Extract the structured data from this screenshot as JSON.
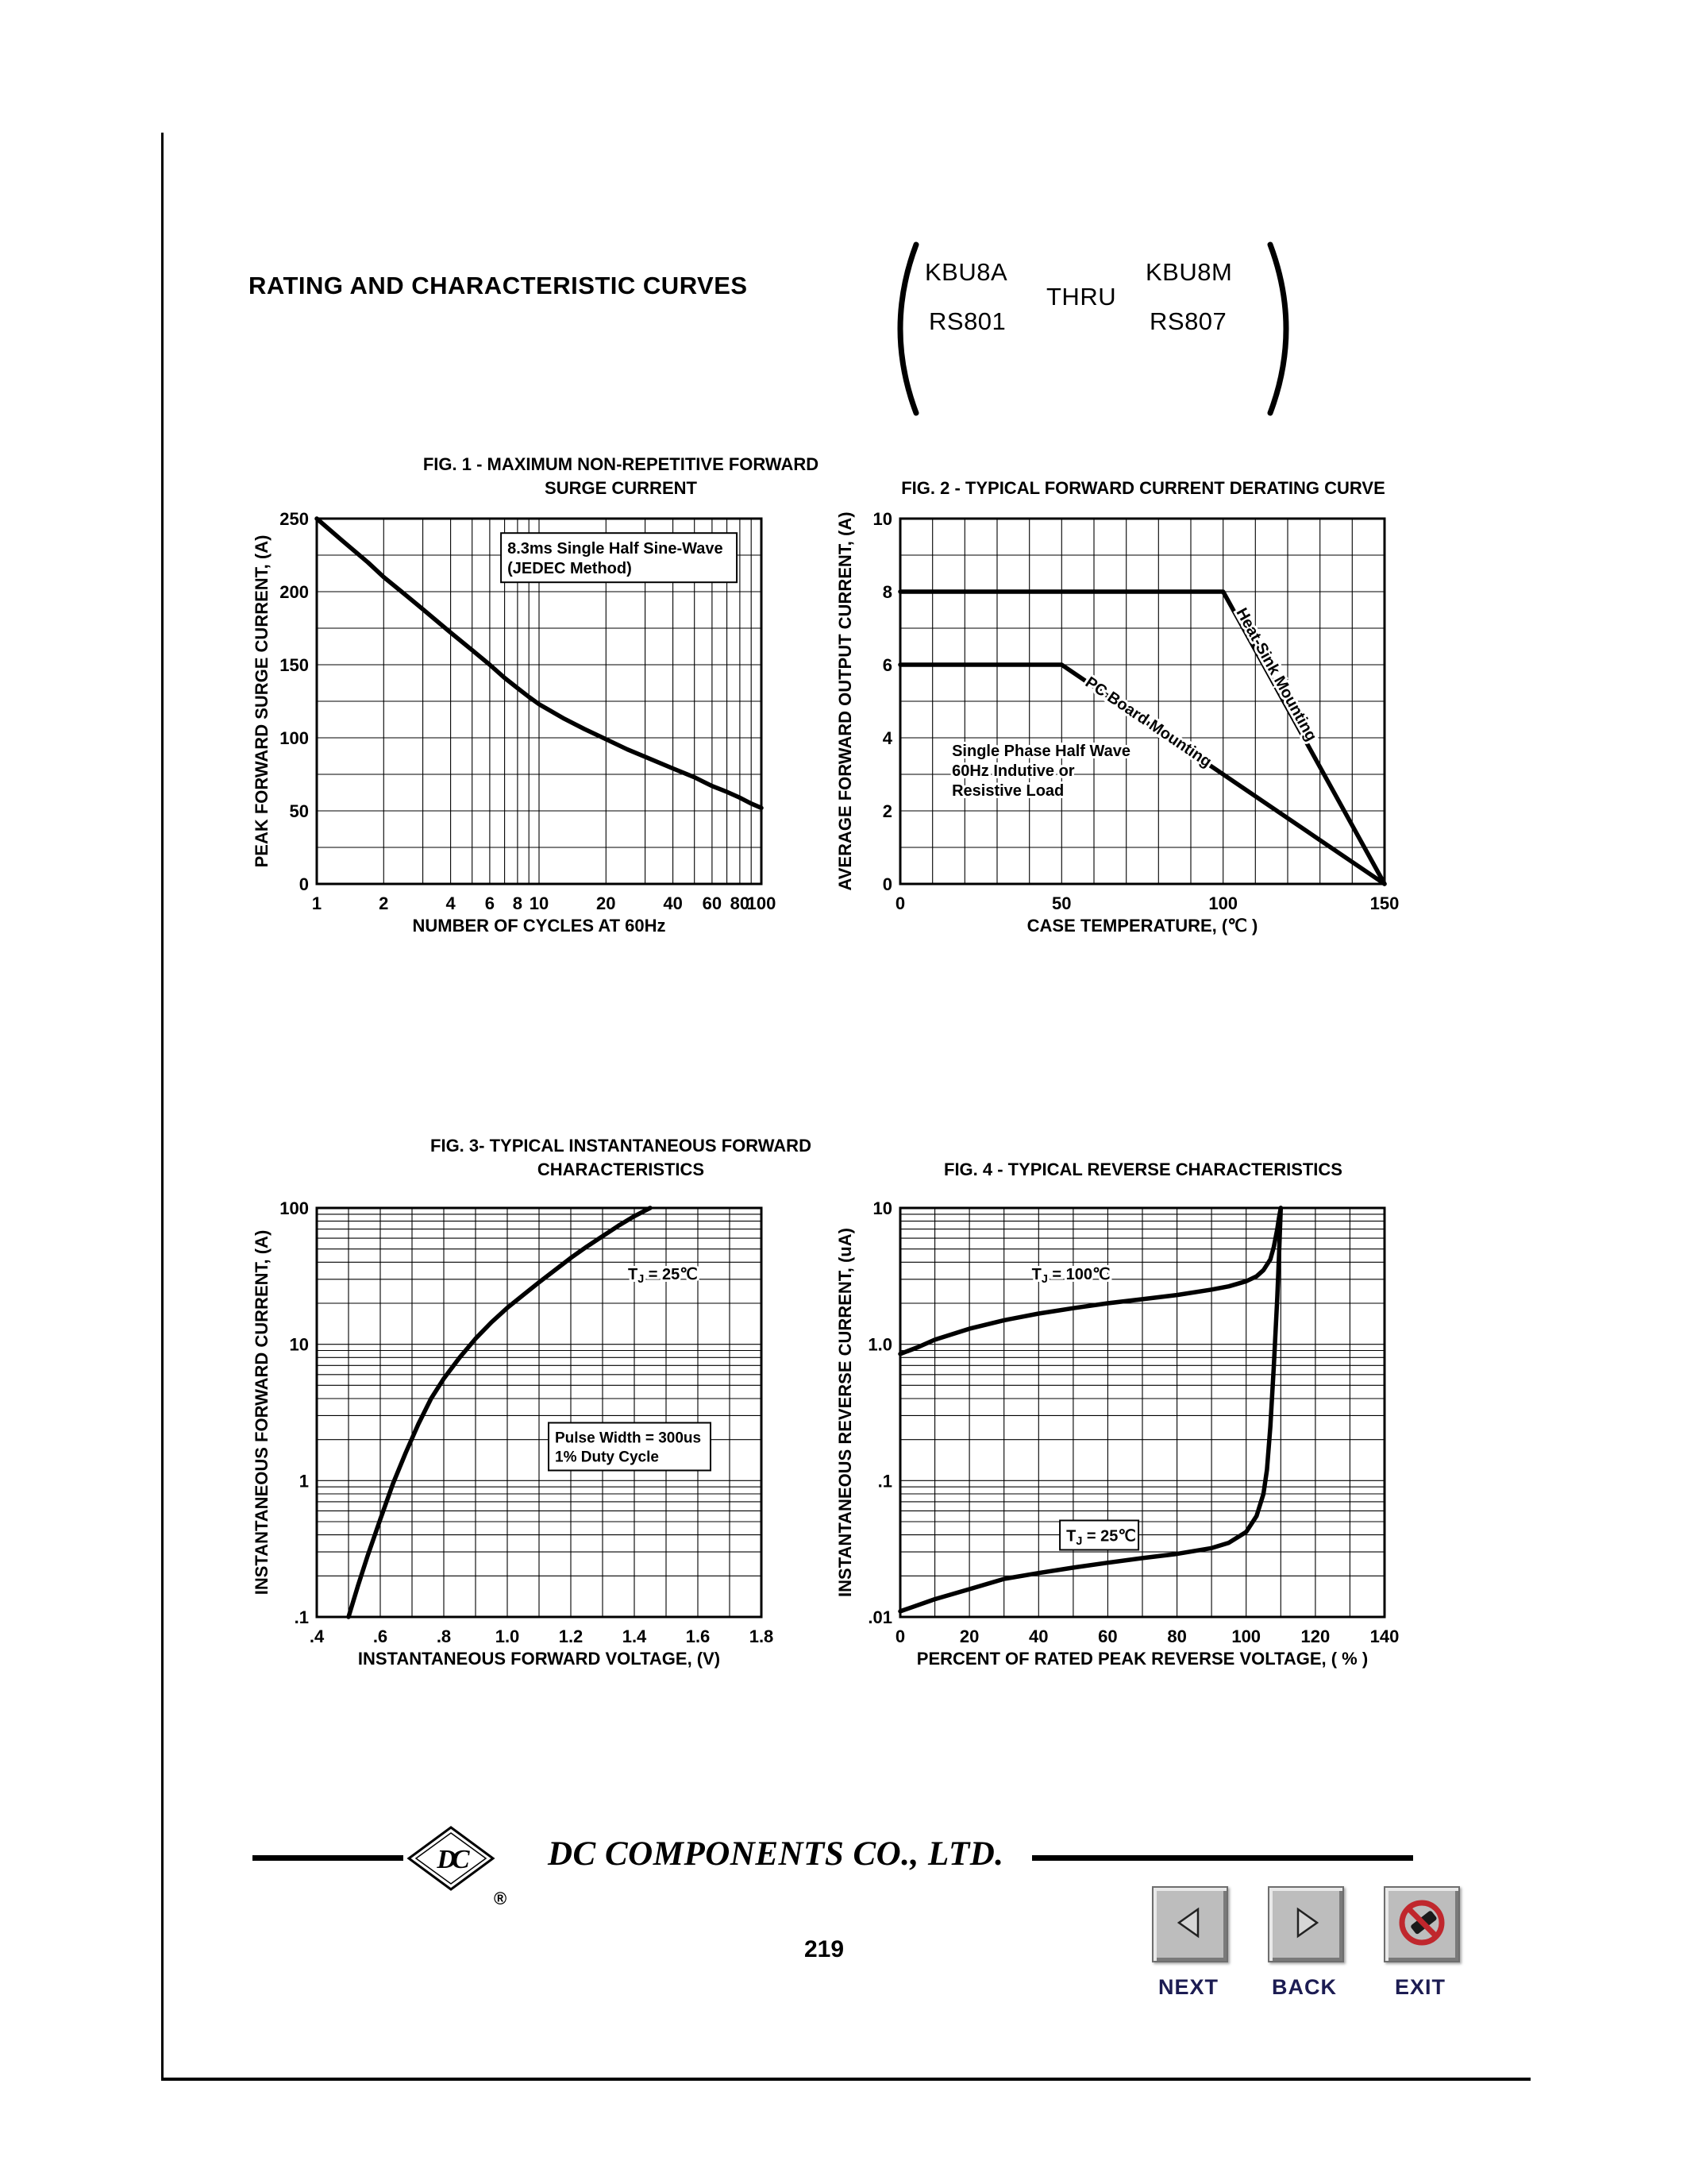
{
  "page": {
    "header": {
      "title": "RATING AND CHARACTERISTIC CURVES",
      "parts": {
        "top_left": "KBU8A",
        "bottom_left": "RS801",
        "middle": "THRU",
        "top_right": "KBU8M",
        "bottom_right": "RS807"
      }
    },
    "footer": {
      "logo_monogram": "DC",
      "registered_mark": "®",
      "company": "DC COMPONENTS CO.,  LTD.",
      "page_number": "219",
      "nav": [
        {
          "label": "NEXT",
          "icon": "arrow-left-icon"
        },
        {
          "label": "BACK",
          "icon": "arrow-right-icon"
        },
        {
          "label": "EXIT",
          "icon": "prohibition-icon"
        }
      ]
    }
  },
  "colors": {
    "ink": "#000000",
    "nav_label_blue": "#1c1c52",
    "prohibition_red": "#c0272d",
    "button_gray": "#bdbdbd"
  },
  "chart_data": [
    {
      "id": "fig1",
      "type": "line",
      "title_lines": [
        "FIG. 1 - MAXIMUM NON-REPETITIVE FORWARD",
        "SURGE CURRENT"
      ],
      "xlabel": "NUMBER OF CYCLES AT 60Hz",
      "ylabel": "PEAK FORWARD SURGE CURRENT, (A)",
      "x": {
        "scale": "log",
        "min": 1,
        "max": 100,
        "grid": [
          1,
          2,
          3,
          4,
          5,
          6,
          7,
          8,
          9,
          10,
          20,
          30,
          40,
          50,
          60,
          70,
          80,
          90,
          100
        ],
        "ticks": [
          {
            "v": 1,
            "t": "1"
          },
          {
            "v": 2,
            "t": "2"
          },
          {
            "v": 4,
            "t": "4"
          },
          {
            "v": 6,
            "t": "6"
          },
          {
            "v": 8,
            "t": "8"
          },
          {
            "v": 10,
            "t": "10"
          },
          {
            "v": 20,
            "t": "20"
          },
          {
            "v": 40,
            "t": "40"
          },
          {
            "v": 60,
            "t": "60"
          },
          {
            "v": 80,
            "t": "80"
          },
          {
            "v": 100,
            "t": "100"
          }
        ]
      },
      "y": {
        "scale": "linear",
        "min": 0,
        "max": 250,
        "grid": [
          0,
          25,
          50,
          75,
          100,
          125,
          150,
          175,
          200,
          225,
          250
        ],
        "ticks": [
          {
            "v": 0,
            "t": "0"
          },
          {
            "v": 50,
            "t": "50"
          },
          {
            "v": 100,
            "t": "100"
          },
          {
            "v": 150,
            "t": "150"
          },
          {
            "v": 200,
            "t": "200"
          },
          {
            "v": 250,
            "t": "250"
          }
        ]
      },
      "series": [
        {
          "name": "surge-current",
          "points": [
            [
              1,
              250
            ],
            [
              1.3,
              235
            ],
            [
              1.7,
              220
            ],
            [
              2,
              210
            ],
            [
              2.5,
              198
            ],
            [
              3,
              188
            ],
            [
              4,
              172
            ],
            [
              5,
              160
            ],
            [
              6,
              150
            ],
            [
              7,
              141
            ],
            [
              8,
              134
            ],
            [
              9,
              128
            ],
            [
              10,
              123
            ],
            [
              13,
              113
            ],
            [
              16,
              106
            ],
            [
              20,
              99
            ],
            [
              25,
              92
            ],
            [
              30,
              87
            ],
            [
              40,
              79
            ],
            [
              50,
              73
            ],
            [
              60,
              67
            ],
            [
              70,
              63
            ],
            [
              80,
              59
            ],
            [
              90,
              55
            ],
            [
              100,
              52
            ]
          ]
        }
      ],
      "annotations": [
        {
          "x": 7.2,
          "y": 226,
          "lines": [
            "8.3ms Single Half Sine-Wave",
            "(JEDEC Method)"
          ],
          "boxed": true,
          "size": 20
        }
      ]
    },
    {
      "id": "fig2",
      "type": "line",
      "title_lines": [
        "FIG. 2 - TYPICAL FORWARD CURRENT DERATING CURVE"
      ],
      "xlabel": "CASE TEMPERATURE, (℃ )",
      "ylabel": "AVERAGE FORWARD OUTPUT CURRENT, (A)",
      "x": {
        "scale": "linear",
        "min": 0,
        "max": 150,
        "grid": [
          0,
          10,
          20,
          30,
          40,
          50,
          60,
          70,
          80,
          90,
          100,
          110,
          120,
          130,
          140,
          150
        ],
        "ticks": [
          {
            "v": 0,
            "t": "0"
          },
          {
            "v": 50,
            "t": "50"
          },
          {
            "v": 100,
            "t": "100"
          },
          {
            "v": 150,
            "t": "150"
          }
        ]
      },
      "y": {
        "scale": "linear",
        "min": 0,
        "max": 10,
        "grid": [
          0,
          1,
          2,
          3,
          4,
          5,
          6,
          7,
          8,
          9,
          10
        ],
        "ticks": [
          {
            "v": 0,
            "t": "0"
          },
          {
            "v": 2,
            "t": "2"
          },
          {
            "v": 4,
            "t": "4"
          },
          {
            "v": 6,
            "t": "6"
          },
          {
            "v": 8,
            "t": "8"
          },
          {
            "v": 10,
            "t": "10"
          }
        ]
      },
      "series": [
        {
          "name": "heat-sink-mounting",
          "points": [
            [
              0,
              8
            ],
            [
              100,
              8
            ],
            [
              150,
              0
            ]
          ]
        },
        {
          "name": "pc-board-mounting",
          "points": [
            [
              0,
              6
            ],
            [
              50,
              6
            ],
            [
              150,
              0
            ]
          ]
        }
      ],
      "annotations": [
        {
          "x": 16,
          "y": 3.5,
          "lines": [
            "Single Phase Half Wave",
            "60Hz Indutive or",
            "Resistive Load"
          ],
          "size": 20
        },
        {
          "x": 104,
          "y": 7.45,
          "lines": [
            "Heat-Sink Mounting"
          ],
          "rotate": 61,
          "size": 20
        },
        {
          "x": 57,
          "y": 5.45,
          "lines": [
            "PC Board Mounting"
          ],
          "rotate": 34,
          "size": 20
        }
      ]
    },
    {
      "id": "fig3",
      "type": "line",
      "title_lines": [
        "FIG. 3- TYPICAL INSTANTANEOUS FORWARD",
        "CHARACTERISTICS"
      ],
      "xlabel": "INSTANTANEOUS FORWARD VOLTAGE, (V)",
      "ylabel": "INSTANTANEOUS FORWARD CURRENT, (A)",
      "x": {
        "scale": "linear",
        "min": 0.4,
        "max": 1.8,
        "grid": [
          0.4,
          0.5,
          0.6,
          0.7,
          0.8,
          0.9,
          1.0,
          1.1,
          1.2,
          1.3,
          1.4,
          1.5,
          1.6,
          1.7,
          1.8
        ],
        "ticks": [
          {
            "v": 0.4,
            "t": ".4"
          },
          {
            "v": 0.6,
            "t": ".6"
          },
          {
            "v": 0.8,
            "t": ".8"
          },
          {
            "v": 1.0,
            "t": "1.0"
          },
          {
            "v": 1.2,
            "t": "1.2"
          },
          {
            "v": 1.4,
            "t": "1.4"
          },
          {
            "v": 1.6,
            "t": "1.6"
          },
          {
            "v": 1.8,
            "t": "1.8"
          }
        ]
      },
      "y": {
        "scale": "log",
        "min": 0.1,
        "max": 100,
        "grid": [
          0.1,
          0.2,
          0.3,
          0.4,
          0.5,
          0.6,
          0.7,
          0.8,
          0.9,
          1,
          2,
          3,
          4,
          5,
          6,
          7,
          8,
          9,
          10,
          20,
          30,
          40,
          50,
          60,
          70,
          80,
          90,
          100
        ],
        "ticks": [
          {
            "v": 0.1,
            "t": ".1"
          },
          {
            "v": 1,
            "t": "1"
          },
          {
            "v": 10,
            "t": "10"
          },
          {
            "v": 100,
            "t": "100"
          }
        ]
      },
      "series": [
        {
          "name": "forward-characteristic",
          "points": [
            [
              0.5,
              0.1
            ],
            [
              0.53,
              0.17
            ],
            [
              0.56,
              0.28
            ],
            [
              0.6,
              0.52
            ],
            [
              0.64,
              0.95
            ],
            [
              0.68,
              1.6
            ],
            [
              0.72,
              2.6
            ],
            [
              0.76,
              4.0
            ],
            [
              0.8,
              5.6
            ],
            [
              0.85,
              8.0
            ],
            [
              0.9,
              11
            ],
            [
              0.95,
              14.5
            ],
            [
              1.0,
              18.5
            ],
            [
              1.05,
              23
            ],
            [
              1.1,
              28.5
            ],
            [
              1.15,
              35
            ],
            [
              1.2,
              43
            ],
            [
              1.25,
              52
            ],
            [
              1.3,
              62
            ],
            [
              1.35,
              74
            ],
            [
              1.4,
              87
            ],
            [
              1.45,
              100
            ]
          ]
        }
      ],
      "annotations": [
        {
          "x": 1.38,
          "y": 30,
          "lines": [
            "T_J = 25℃"
          ],
          "size": 20
        },
        {
          "x": 1.15,
          "y": 1.9,
          "lines": [
            "Pulse Width = 300us",
            "1% Duty Cycle"
          ],
          "boxed": true,
          "size": 19
        }
      ]
    },
    {
      "id": "fig4",
      "type": "line",
      "title_lines": [
        "FIG. 4 - TYPICAL REVERSE CHARACTERISTICS"
      ],
      "xlabel": "PERCENT OF RATED PEAK REVERSE VOLTAGE, ( % )",
      "ylabel": "INSTANTANEOUS REVERSE CURRENT, (uA)",
      "x": {
        "scale": "linear",
        "min": 0,
        "max": 140,
        "grid": [
          0,
          10,
          20,
          30,
          40,
          50,
          60,
          70,
          80,
          90,
          100,
          110,
          120,
          130,
          140
        ],
        "ticks": [
          {
            "v": 0,
            "t": "0"
          },
          {
            "v": 20,
            "t": "20"
          },
          {
            "v": 40,
            "t": "40"
          },
          {
            "v": 60,
            "t": "60"
          },
          {
            "v": 80,
            "t": "80"
          },
          {
            "v": 100,
            "t": "100"
          },
          {
            "v": 120,
            "t": "120"
          },
          {
            "v": 140,
            "t": "140"
          }
        ]
      },
      "y": {
        "scale": "log",
        "min": 0.01,
        "max": 10,
        "grid": [
          0.01,
          0.02,
          0.03,
          0.04,
          0.05,
          0.06,
          0.07,
          0.08,
          0.09,
          0.1,
          0.2,
          0.3,
          0.4,
          0.5,
          0.6,
          0.7,
          0.8,
          0.9,
          1,
          2,
          3,
          4,
          5,
          6,
          7,
          8,
          9,
          10
        ],
        "ticks": [
          {
            "v": 0.01,
            "t": ".01"
          },
          {
            "v": 0.1,
            "t": ".1"
          },
          {
            "v": 1,
            "t": "1.0"
          },
          {
            "v": 10,
            "t": "10"
          }
        ]
      },
      "series": [
        {
          "name": "tj-100c",
          "points": [
            [
              0,
              0.85
            ],
            [
              5,
              0.95
            ],
            [
              10,
              1.08
            ],
            [
              20,
              1.3
            ],
            [
              30,
              1.5
            ],
            [
              40,
              1.68
            ],
            [
              50,
              1.84
            ],
            [
              60,
              2.0
            ],
            [
              70,
              2.14
            ],
            [
              80,
              2.3
            ],
            [
              90,
              2.52
            ],
            [
              95,
              2.66
            ],
            [
              100,
              2.9
            ],
            [
              103,
              3.15
            ],
            [
              105,
              3.5
            ],
            [
              107,
              4.2
            ],
            [
              108,
              5.2
            ],
            [
              109,
              7.0
            ],
            [
              109.5,
              8.5
            ],
            [
              110,
              10
            ]
          ]
        },
        {
          "name": "tj-25c",
          "points": [
            [
              0,
              0.011
            ],
            [
              10,
              0.0135
            ],
            [
              20,
              0.016
            ],
            [
              30,
              0.019
            ],
            [
              40,
              0.021
            ],
            [
              50,
              0.023
            ],
            [
              60,
              0.025
            ],
            [
              70,
              0.027
            ],
            [
              80,
              0.029
            ],
            [
              90,
              0.032
            ],
            [
              95,
              0.035
            ],
            [
              100,
              0.042
            ],
            [
              103,
              0.055
            ],
            [
              105,
              0.08
            ],
            [
              106,
              0.12
            ],
            [
              107,
              0.25
            ],
            [
              108,
              0.7
            ],
            [
              109,
              2.2
            ],
            [
              109.5,
              4.5
            ],
            [
              110,
              10
            ]
          ]
        }
      ],
      "annotations": [
        {
          "x": 38,
          "y": 3.0,
          "lines": [
            "T_J = 100℃"
          ],
          "size": 20
        },
        {
          "x": 48,
          "y": 0.036,
          "lines": [
            "T_J = 25℃"
          ],
          "boxed": true,
          "size": 20
        }
      ]
    }
  ]
}
